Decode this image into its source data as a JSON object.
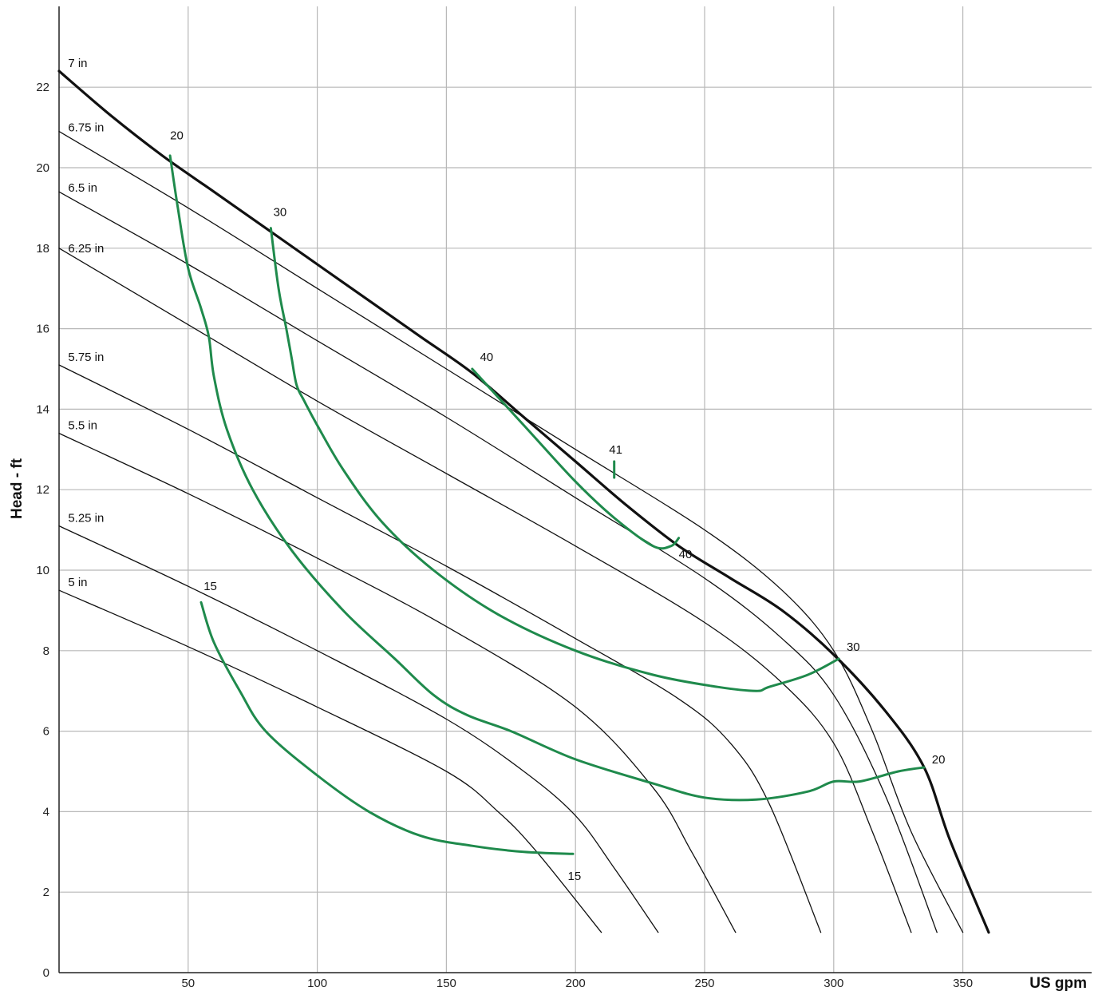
{
  "chart_data": {
    "type": "line",
    "title": "",
    "xlabel": "US gpm",
    "ylabel": "Head - ft",
    "xlim": [
      0,
      365
    ],
    "ylim": [
      0,
      24
    ],
    "x_ticks": [
      50,
      100,
      150,
      200,
      250,
      300,
      350
    ],
    "y_ticks": [
      0,
      2,
      4,
      6,
      8,
      10,
      12,
      14,
      16,
      18,
      20,
      22
    ],
    "grid": true,
    "colors": {
      "impeller": "#111111",
      "efficiency": "#1f8a4c",
      "grid": "#b8b8b8"
    },
    "impeller_curves": [
      {
        "name": "7 in",
        "points": [
          [
            0,
            22.4
          ],
          [
            20,
            21.3
          ],
          [
            40,
            20.3
          ],
          [
            60,
            19.4
          ],
          [
            80,
            18.5
          ],
          [
            100,
            17.6
          ],
          [
            120,
            16.7
          ],
          [
            140,
            15.8
          ],
          [
            160,
            14.9
          ],
          [
            180,
            13.8
          ],
          [
            200,
            12.7
          ],
          [
            220,
            11.6
          ],
          [
            240,
            10.6
          ],
          [
            260,
            9.8
          ],
          [
            280,
            9.0
          ],
          [
            300,
            7.9
          ],
          [
            320,
            6.5
          ],
          [
            335,
            5.1
          ],
          [
            345,
            3.3
          ],
          [
            360,
            1.0
          ]
        ]
      },
      {
        "name": "6.75 in",
        "points": [
          [
            0,
            20.9
          ],
          [
            50,
            19.0
          ],
          [
            100,
            17.0
          ],
          [
            150,
            15.0
          ],
          [
            200,
            13.0
          ],
          [
            250,
            11.0
          ],
          [
            280,
            9.5
          ],
          [
            300,
            8.0
          ],
          [
            315,
            6.0
          ],
          [
            330,
            3.5
          ],
          [
            350,
            1.0
          ]
        ]
      },
      {
        "name": "6.5 in",
        "points": [
          [
            0,
            19.4
          ],
          [
            50,
            17.6
          ],
          [
            100,
            15.7
          ],
          [
            150,
            13.8
          ],
          [
            200,
            11.8
          ],
          [
            250,
            9.8
          ],
          [
            280,
            8.3
          ],
          [
            300,
            6.9
          ],
          [
            320,
            4.4
          ],
          [
            340,
            1.0
          ]
        ]
      },
      {
        "name": "6.25 in",
        "points": [
          [
            0,
            18.0
          ],
          [
            50,
            16.1
          ],
          [
            100,
            14.2
          ],
          [
            150,
            12.4
          ],
          [
            200,
            10.6
          ],
          [
            250,
            8.7
          ],
          [
            280,
            7.2
          ],
          [
            300,
            5.7
          ],
          [
            315,
            3.5
          ],
          [
            330,
            1.0
          ]
        ]
      },
      {
        "name": "5.75 in",
        "points": [
          [
            0,
            15.1
          ],
          [
            50,
            13.5
          ],
          [
            100,
            11.8
          ],
          [
            150,
            10.1
          ],
          [
            200,
            8.3
          ],
          [
            240,
            6.8
          ],
          [
            260,
            5.7
          ],
          [
            275,
            4.2
          ],
          [
            295,
            1.0
          ]
        ]
      },
      {
        "name": "5.5 in",
        "points": [
          [
            0,
            13.4
          ],
          [
            50,
            11.9
          ],
          [
            100,
            10.3
          ],
          [
            150,
            8.6
          ],
          [
            200,
            6.6
          ],
          [
            230,
            4.6
          ],
          [
            245,
            3.0
          ],
          [
            262,
            1.0
          ]
        ]
      },
      {
        "name": "5.25 in",
        "points": [
          [
            0,
            11.1
          ],
          [
            50,
            9.6
          ],
          [
            100,
            8.0
          ],
          [
            150,
            6.3
          ],
          [
            180,
            5.0
          ],
          [
            200,
            3.9
          ],
          [
            215,
            2.6
          ],
          [
            232,
            1.0
          ]
        ]
      },
      {
        "name": "5 in",
        "points": [
          [
            0,
            9.5
          ],
          [
            50,
            8.1
          ],
          [
            100,
            6.6
          ],
          [
            150,
            5.0
          ],
          [
            170,
            4.0
          ],
          [
            185,
            3.0
          ],
          [
            210,
            1.0
          ]
        ]
      }
    ],
    "efficiency_curves": [
      {
        "name": "15",
        "points": [
          [
            55,
            9.2
          ],
          [
            60,
            8.2
          ],
          [
            70,
            7.0
          ],
          [
            80,
            6.0
          ],
          [
            100,
            4.9
          ],
          [
            120,
            4.0
          ],
          [
            140,
            3.4
          ],
          [
            160,
            3.15
          ],
          [
            180,
            3.0
          ],
          [
            199,
            2.95
          ]
        ]
      },
      {
        "name": "20",
        "points": [
          [
            43,
            20.3
          ],
          [
            46,
            19.0
          ],
          [
            50,
            17.5
          ],
          [
            55,
            16.5
          ],
          [
            58,
            15.8
          ],
          [
            60,
            14.8
          ],
          [
            65,
            13.5
          ],
          [
            75,
            12.0
          ],
          [
            90,
            10.5
          ],
          [
            110,
            9.0
          ],
          [
            130,
            7.8
          ],
          [
            145,
            6.9
          ],
          [
            158,
            6.4
          ],
          [
            175,
            6.0
          ],
          [
            200,
            5.3
          ],
          [
            230,
            4.7
          ],
          [
            250,
            4.35
          ],
          [
            270,
            4.3
          ],
          [
            290,
            4.5
          ],
          [
            300,
            4.75
          ],
          [
            310,
            4.75
          ],
          [
            325,
            5.0
          ],
          [
            335,
            5.1
          ]
        ]
      },
      {
        "name": "30",
        "points": [
          [
            82,
            18.5
          ],
          [
            85,
            17.0
          ],
          [
            88,
            16.0
          ],
          [
            90,
            15.3
          ],
          [
            92,
            14.6
          ],
          [
            95,
            14.2
          ],
          [
            100,
            13.6
          ],
          [
            110,
            12.5
          ],
          [
            125,
            11.2
          ],
          [
            145,
            10.0
          ],
          [
            170,
            8.9
          ],
          [
            200,
            8.0
          ],
          [
            230,
            7.4
          ],
          [
            255,
            7.1
          ],
          [
            270,
            7.0
          ],
          [
            275,
            7.1
          ],
          [
            290,
            7.4
          ],
          [
            302,
            7.8
          ]
        ]
      },
      {
        "name": "40",
        "points": [
          [
            160,
            15.0
          ],
          [
            180,
            13.6
          ],
          [
            200,
            12.2
          ],
          [
            215,
            11.3
          ],
          [
            230,
            10.6
          ],
          [
            237,
            10.6
          ],
          [
            240,
            10.8
          ]
        ]
      },
      {
        "name": "41",
        "points": [
          [
            215,
            12.7
          ],
          [
            215,
            12.3
          ]
        ]
      }
    ],
    "labels": [
      {
        "text": "7 in",
        "x": 3.5,
        "y": 22.5
      },
      {
        "text": "6.75 in",
        "x": 3.5,
        "y": 20.9
      },
      {
        "text": "6.5 in",
        "x": 3.5,
        "y": 19.4
      },
      {
        "text": "6.25 in",
        "x": 3.5,
        "y": 17.9
      },
      {
        "text": "5.75 in",
        "x": 3.5,
        "y": 15.2
      },
      {
        "text": "5.5 in",
        "x": 3.5,
        "y": 13.5
      },
      {
        "text": "5.25 in",
        "x": 3.5,
        "y": 11.2
      },
      {
        "text": "5 in",
        "x": 3.5,
        "y": 9.6
      },
      {
        "text": "20",
        "x": 43,
        "y": 20.7
      },
      {
        "text": "30",
        "x": 83,
        "y": 18.8
      },
      {
        "text": "40",
        "x": 163,
        "y": 15.2
      },
      {
        "text": "41",
        "x": 213,
        "y": 12.9
      },
      {
        "text": "40",
        "x": 240,
        "y": 10.3
      },
      {
        "text": "30",
        "x": 305,
        "y": 8.0
      },
      {
        "text": "20",
        "x": 338,
        "y": 5.2
      },
      {
        "text": "15",
        "x": 56,
        "y": 9.5
      },
      {
        "text": "15",
        "x": 197,
        "y": 2.3
      }
    ]
  }
}
